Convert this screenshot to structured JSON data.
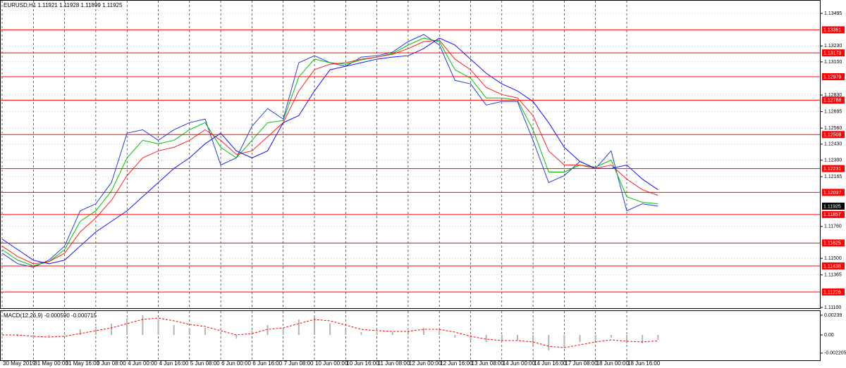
{
  "chart_data": [
    {
      "type": "line",
      "title": "EURUSD,H1  1.11921 1.11928 1.11899 1.11925",
      "categories": [
        "30 May 2019",
        null,
        "31 May 00:00",
        null,
        "31 May 16:00",
        null,
        "3 Jun 08:00",
        null,
        "4 Jun 00:00",
        null,
        "4 Jun 16:00",
        null,
        "5 Jun 08:00",
        null,
        "6 Jun 00:00",
        null,
        "6 Jun 16:00",
        null,
        "7 Jun 08:00",
        null,
        "10 Jun 00:00",
        null,
        "10 Jun 16:00",
        null,
        "11 Jun 08:00",
        null,
        "12 Jun 00:00",
        null,
        "12 Jun 16:00",
        null,
        "13 Jun 08:00",
        null,
        "14 Jun 00:00",
        null,
        "14 Jun 16:00",
        null,
        "17 Jun 08:00",
        null,
        "18 Jun 00:00",
        null,
        "18 Jun 16:00",
        null,
        null
      ],
      "series": [
        {
          "color": "#2040e0",
          "values": [
            1.11542,
            1.11456,
            1.11428,
            1.11485,
            1.116,
            1.11887,
            1.11944,
            1.12117,
            1.12519,
            1.12547,
            1.12461,
            1.12547,
            1.12605,
            1.12634,
            1.1226,
            1.12318,
            1.12576,
            1.1272,
            1.12634,
            1.13093,
            1.1315,
            1.13093,
            1.13064,
            1.13139,
            1.1315,
            1.13179,
            1.13265,
            1.13323,
            1.13237,
            1.12949,
            1.12921,
            1.12748,
            1.12777,
            1.12777,
            1.12461,
            1.12117,
            1.12174,
            1.12289,
            1.12232,
            1.12375,
            1.11887,
            1.11944,
            1.11925
          ]
        },
        {
          "color": "#00c000",
          "values": [
            1.11571,
            1.11485,
            1.11439,
            1.11473,
            1.11571,
            1.11801,
            1.11887,
            1.12048,
            1.12318,
            1.12461,
            1.12433,
            1.12461,
            1.12547,
            1.12605,
            1.12404,
            1.12318,
            1.12461,
            1.12605,
            1.12622,
            1.12978,
            1.13122,
            1.13093,
            1.13081,
            1.13116,
            1.13139,
            1.13168,
            1.13237,
            1.13294,
            1.13265,
            1.13036,
            1.12967,
            1.12806,
            1.12806,
            1.12789,
            1.12547,
            1.12203,
            1.12203,
            1.1226,
            1.12243,
            1.123,
            1.12002,
            1.11956,
            1.11944
          ]
        },
        {
          "color": "#ff2020",
          "values": [
            1.116,
            1.11514,
            1.11456,
            1.11473,
            1.11542,
            1.11715,
            1.11829,
            1.11973,
            1.12174,
            1.12318,
            1.12375,
            1.12404,
            1.12461,
            1.12547,
            1.12461,
            1.12346,
            1.12375,
            1.1249,
            1.12605,
            1.12863,
            1.13036,
            1.13081,
            1.13093,
            1.13122,
            1.13139,
            1.13162,
            1.13208,
            1.13265,
            1.13277,
            1.13122,
            1.13036,
            1.12892,
            1.12834,
            1.12806,
            1.12662,
            1.12375,
            1.1226,
            1.1226,
            1.12232,
            1.1226,
            1.12145,
            1.12059,
            1.12013
          ]
        },
        {
          "color": "#1010ff",
          "values": [
            1.11657,
            1.11571,
            1.11485,
            1.11456,
            1.11485,
            1.116,
            1.11715,
            1.11801,
            1.11887,
            1.12002,
            1.12117,
            1.12232,
            1.12318,
            1.12433,
            1.12519,
            1.12375,
            1.12318,
            1.12375,
            1.12605,
            1.12662,
            1.12863,
            1.13036,
            1.13064,
            1.13093,
            1.13122,
            1.13139,
            1.1315,
            1.13208,
            1.13294,
            1.13237,
            1.13122,
            1.13007,
            1.12921,
            1.12863,
            1.12777,
            1.12605,
            1.12404,
            1.12289,
            1.12232,
            1.12232,
            1.1226,
            1.12145,
            1.12059
          ]
        }
      ],
      "ylim": [
        1.11094,
        1.13598
      ],
      "yticks": [
        1.13495,
        {
          "value": 1.1323,
          "label": "1.13230"
        },
        {
          "value": 1.131,
          "label": "1.13100"
        },
        {
          "value": 1.1283,
          "label": "1.12830"
        },
        1.12695,
        {
          "value": 1.1256,
          "label": "1.12560"
        },
        {
          "value": 1.1243,
          "label": "1.12430"
        },
        {
          "value": 1.123,
          "label": "1.12300"
        },
        1.12165,
        {
          "value": 1.1176,
          "label": "1.11760"
        },
        {
          "value": 1.115,
          "label": "1.11500"
        },
        1.11365,
        {
          "value": 1.111,
          "label": "1.11100"
        }
      ],
      "levels": {
        "color": "#ff0000",
        "values": [
          1.13361,
          1.13173,
          1.12979,
          1.12788,
          1.12508,
          1.12231,
          1.12037,
          1.11857,
          1.11625,
          1.11438,
          1.11226
        ]
      },
      "last_price": 1.11925,
      "grid": true
    },
    {
      "type": "bar",
      "title": "MACD(12,26,9) -0.000590 -0.000715",
      "series": [
        {
          "color": "#b4b4b4",
          "values": [
            0.00017,
            -0.00017,
            -0.00034,
            -0.00017,
            0.00017,
            0.00068,
            0.00102,
            0.00137,
            0.00205,
            0.00239,
            0.00188,
            0.0012,
            0.00085,
            0.00085,
            0,
            -0.00043,
            0.00051,
            0.0012,
            0.00085,
            0.00188,
            0.00222,
            0.00137,
            0.00068,
            0.00034,
            0.00034,
            0.00034,
            0.00051,
            0.00085,
            0.00068,
            -0.00034,
            -0.00068,
            -0.00085,
            -0.00068,
            -0.00068,
            -0.0012,
            -0.00188,
            -0.00154,
            -0.00085,
            -0.00068,
            -0.00034,
            -0.00102,
            -0.00102,
            -0.00059
          ]
        },
        {
          "type": "line",
          "color": "#ff0000",
          "values": [
            0,
            0,
            -0.00017,
            -0.00026,
            -0.00017,
            0.00017,
            0.00051,
            0.00085,
            0.00137,
            0.00188,
            0.00205,
            0.00171,
            0.00128,
            0.00102,
            0.00051,
            0,
            0.00017,
            0.00068,
            0.00085,
            0.00137,
            0.00188,
            0.00171,
            0.0012,
            0.00068,
            0.00051,
            0.00043,
            0.00043,
            0.00068,
            0.00068,
            0.00034,
            -0.00017,
            -0.00051,
            -0.00068,
            -0.00068,
            -0.00085,
            -0.00137,
            -0.00154,
            -0.0012,
            -0.00085,
            -0.0006,
            -0.00077,
            -0.00085,
            -0.000715
          ]
        }
      ],
      "ylim": [
        -0.00307,
        0.0029
      ],
      "yticks": [
        0.00239,
        {
          "value": 0,
          "label": "0.00"
        },
        -0.002205
      ]
    }
  ]
}
